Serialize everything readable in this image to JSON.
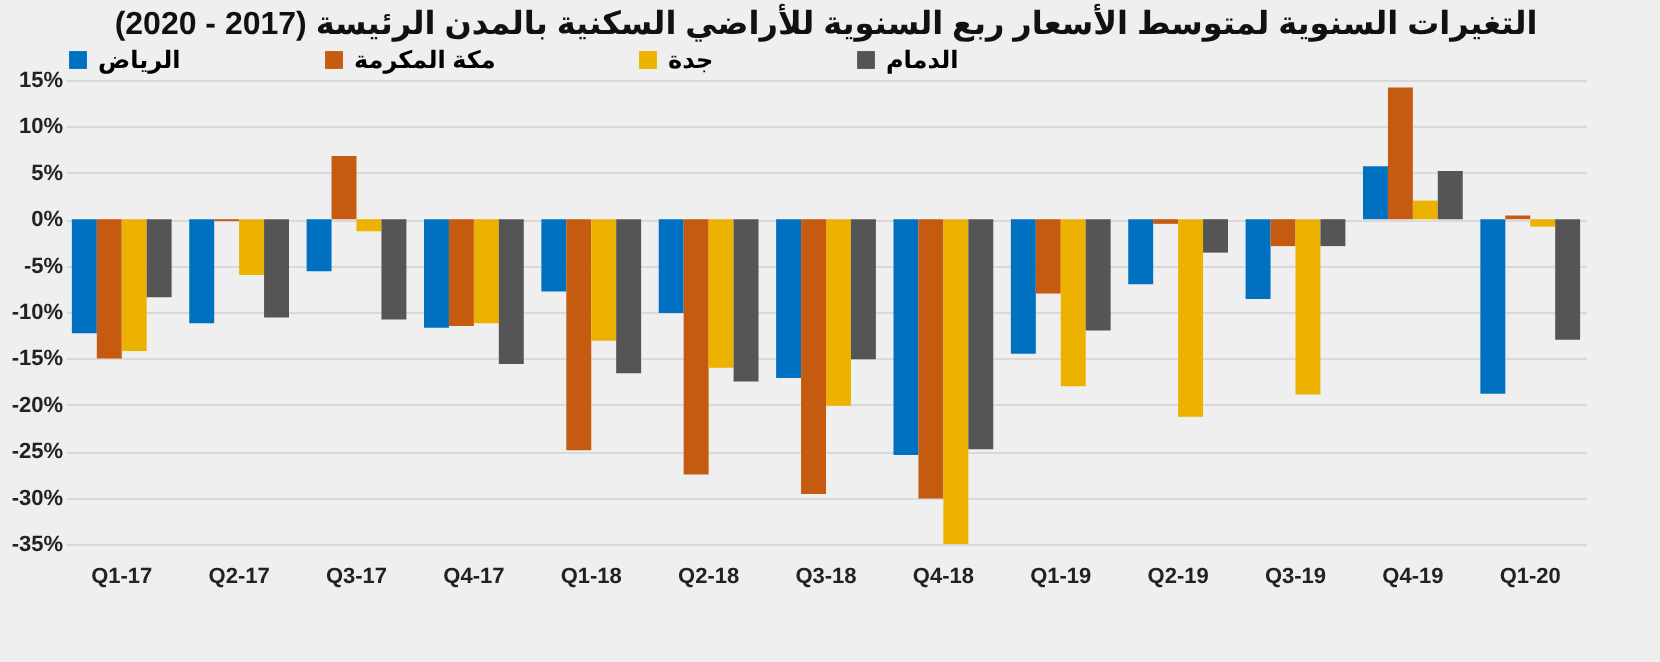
{
  "chart_data": {
    "type": "bar",
    "title": "التغيرات السنوية لمتوسط الأسعار ربع السنوية للأراضي السكنية بالمدن الرئيسة (2017 - 2020)",
    "categories": [
      "Q1-17",
      "Q2-17",
      "Q3-17",
      "Q4-17",
      "Q1-18",
      "Q2-18",
      "Q3-18",
      "Q4-18",
      "Q1-19",
      "Q2-19",
      "Q3-19",
      "Q4-19",
      "Q1-20"
    ],
    "series": [
      {
        "name": "الرياض",
        "color": "#0070c0",
        "values": [
          -12.3,
          -11.2,
          -5.6,
          -11.7,
          -7.8,
          -10.1,
          -17.1,
          -25.4,
          -14.5,
          -7,
          -8.6,
          5.7,
          -18.8
        ]
      },
      {
        "name": "مكة المكرمة",
        "color": "#c55a11",
        "values": [
          -15,
          -0.2,
          6.8,
          -11.5,
          -24.9,
          -27.5,
          -29.6,
          -30.1,
          -8,
          -0.5,
          -2.9,
          14.2,
          0.4
        ]
      },
      {
        "name": "جدة",
        "color": "#edb100",
        "values": [
          -14.2,
          -6,
          -1.3,
          -11.2,
          -13.1,
          -16,
          -20.1,
          -35,
          -18,
          -21.3,
          -18.9,
          2,
          -0.8
        ]
      },
      {
        "name": "الدمام",
        "color": "#555555",
        "values": [
          -8.4,
          -10.6,
          -10.8,
          -15.6,
          -16.6,
          -17.5,
          -15.1,
          -24.8,
          -12,
          -3.6,
          -2.9,
          5.2,
          -13
        ]
      }
    ],
    "ylim": [
      -35,
      15
    ],
    "yticks": [
      {
        "value": 15,
        "label": "15%"
      },
      {
        "value": 10,
        "label": "10%"
      },
      {
        "value": 5,
        "label": "5%"
      },
      {
        "value": 0,
        "label": "0%"
      },
      {
        "value": -5,
        "label": "-5%"
      },
      {
        "value": -10,
        "label": "-10%"
      },
      {
        "value": -15,
        "label": "-15%"
      },
      {
        "value": -20,
        "label": "-20%"
      },
      {
        "value": -25,
        "label": "-25%"
      },
      {
        "value": -30,
        "label": "-30%"
      },
      {
        "value": -35,
        "label": "-35%"
      }
    ],
    "grid": "y",
    "legend": "top"
  }
}
